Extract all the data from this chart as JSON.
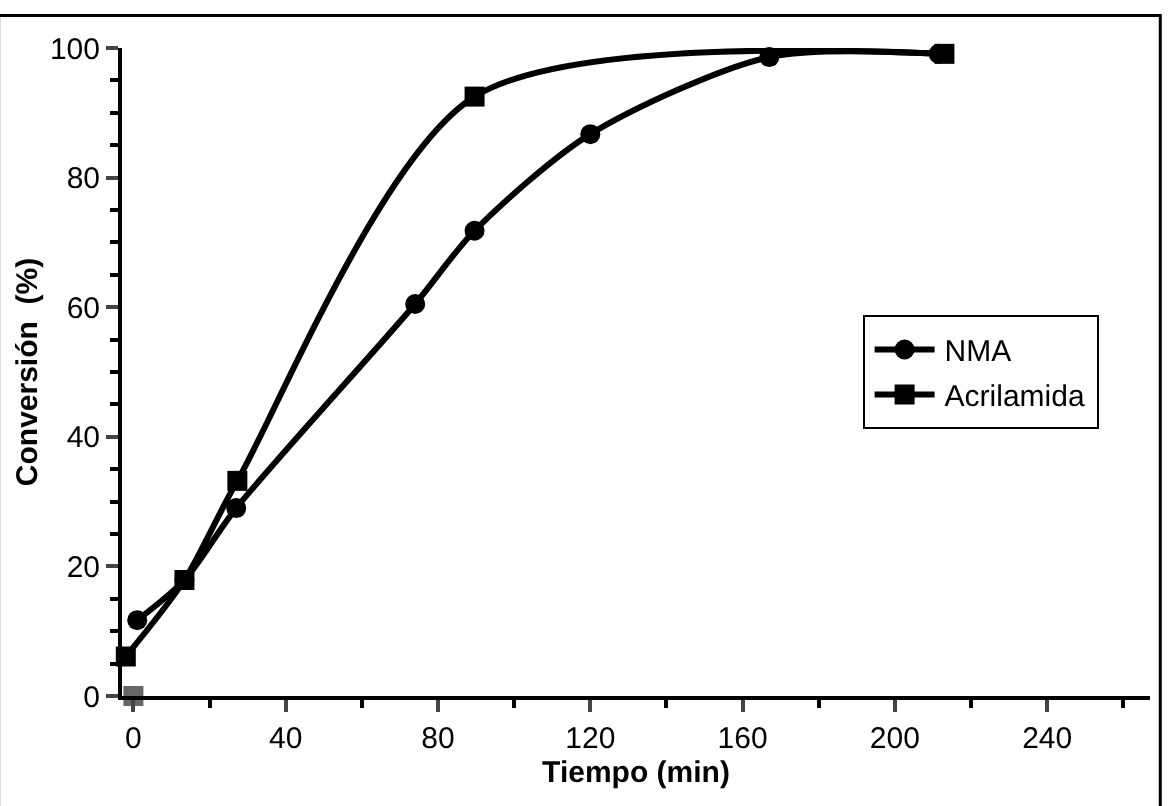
{
  "chart_data": {
    "type": "line",
    "xlabel": "Tiempo (min)",
    "ylabel": "Conversión  (%)",
    "xlim": [
      -3,
      267
    ],
    "ylim": [
      0,
      100
    ],
    "xticks": [
      0,
      40,
      80,
      120,
      160,
      200,
      240
    ],
    "yticks": [
      0,
      20,
      40,
      60,
      80,
      100
    ],
    "legend": "right",
    "line_style": "solid",
    "series": [
      {
        "name": "NMA",
        "color": "#000000",
        "marker": "circle",
        "x": [
          1,
          13.4,
          27,
          74,
          89.6,
          120,
          167,
          211.5
        ],
        "values": [
          11.7,
          17.9,
          29,
          60.5,
          71.8,
          86.7,
          98.6,
          99.1
        ]
      },
      {
        "name": "Acrilamida",
        "color": "#000000",
        "marker": "square",
        "x": [
          -2,
          13.4,
          27.3,
          89.6,
          213
        ],
        "values": [
          6.1,
          17.9,
          33.2,
          92.5,
          99.1
        ]
      },
      {
        "type": "scatter",
        "color": "#666666",
        "marker": "square",
        "x": [
          0
        ],
        "values": [
          0
        ]
      }
    ]
  }
}
